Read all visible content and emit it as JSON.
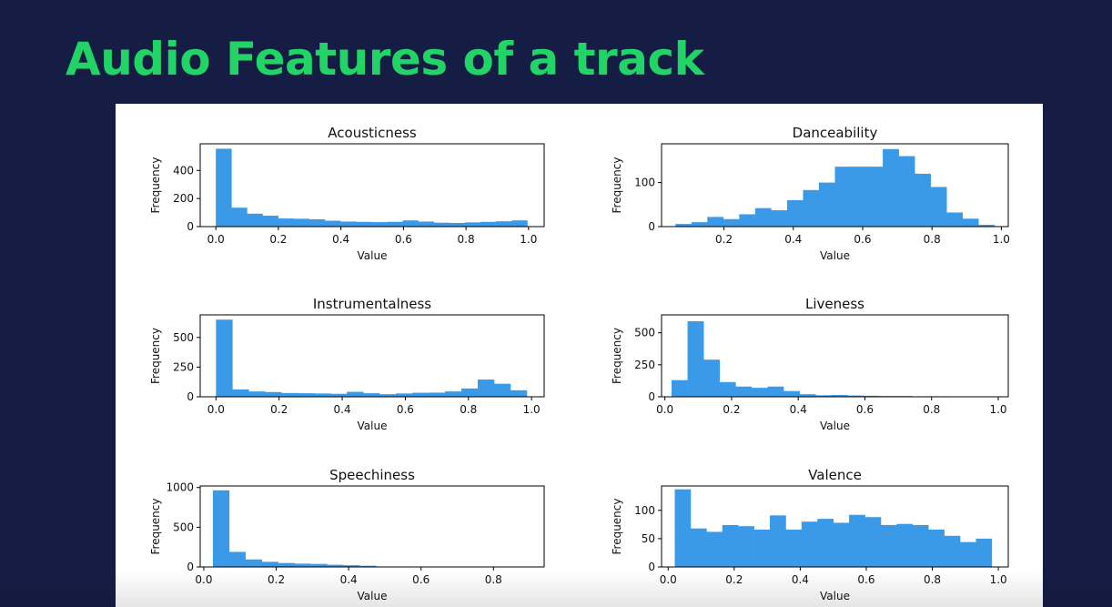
{
  "page": {
    "title": "Audio Features of a track",
    "colors": {
      "background": "#161d44",
      "title": "#22d466",
      "bar": "#3a9ae8",
      "panel": "#ffffff"
    }
  },
  "chart_data": [
    {
      "type": "bar",
      "title": "Acousticness",
      "xlabel": "Value",
      "ylabel": "Frequency",
      "xlim": [
        -0.05,
        1.05
      ],
      "ylim": [
        0,
        590
      ],
      "xticks": [
        0.0,
        0.2,
        0.4,
        0.6,
        0.8,
        1.0
      ],
      "xtick_labels": [
        "0.0",
        "0.2",
        "0.4",
        "0.6",
        "0.8",
        "1.0"
      ],
      "yticks": [
        0,
        200,
        400
      ],
      "ytick_labels": [
        "0",
        "200",
        "400"
      ],
      "bin_start": 0.0,
      "bin_end": 0.996,
      "values": [
        555,
        135,
        92,
        78,
        58,
        56,
        52,
        42,
        36,
        34,
        32,
        34,
        44,
        36,
        28,
        26,
        30,
        34,
        38,
        44
      ]
    },
    {
      "type": "bar",
      "title": "Danceability",
      "xlabel": "Value",
      "ylabel": "Frequency",
      "xlim": [
        0.02,
        1.02
      ],
      "ylim": [
        0,
        188
      ],
      "xticks": [
        0.2,
        0.4,
        0.6,
        0.8,
        1.0
      ],
      "xtick_labels": [
        "0.2",
        "0.4",
        "0.6",
        "0.8",
        "1.0"
      ],
      "yticks": [
        0,
        100
      ],
      "ytick_labels": [
        "0",
        "100"
      ],
      "bin_start": 0.06,
      "bin_end": 0.98,
      "values": [
        6,
        10,
        22,
        17,
        28,
        42,
        37,
        60,
        83,
        100,
        136,
        136,
        136,
        176,
        160,
        120,
        90,
        32,
        18,
        4
      ]
    },
    {
      "type": "bar",
      "title": "Instrumentalness",
      "xlabel": "Value",
      "ylabel": "Frequency",
      "xlim": [
        -0.05,
        1.04
      ],
      "ylim": [
        0,
        690
      ],
      "xticks": [
        0.0,
        0.2,
        0.4,
        0.6,
        0.8,
        1.0
      ],
      "xtick_labels": [
        "0.0",
        "0.2",
        "0.4",
        "0.6",
        "0.8",
        "1.0"
      ],
      "yticks": [
        0,
        250,
        500
      ],
      "ytick_labels": [
        "0",
        "250",
        "500"
      ],
      "bin_start": 0.0,
      "bin_end": 0.985,
      "values": [
        650,
        62,
        45,
        40,
        32,
        30,
        28,
        25,
        42,
        30,
        22,
        28,
        34,
        35,
        45,
        70,
        145,
        110,
        55
      ]
    },
    {
      "type": "bar",
      "title": "Liveness",
      "xlabel": "Value",
      "ylabel": "Frequency",
      "xlim": [
        -0.01,
        1.03
      ],
      "ylim": [
        0,
        640
      ],
      "xticks": [
        0.0,
        0.2,
        0.4,
        0.6,
        0.8,
        1.0
      ],
      "xtick_labels": [
        "0.0",
        "0.2",
        "0.4",
        "0.6",
        "0.8",
        "1.0"
      ],
      "yticks": [
        0,
        250,
        500
      ],
      "ytick_labels": [
        "0",
        "250",
        "500"
      ],
      "bin_start": 0.02,
      "bin_end": 0.98,
      "values": [
        130,
        590,
        290,
        115,
        80,
        70,
        80,
        45,
        20,
        12,
        14,
        10,
        8,
        6,
        6,
        4,
        4,
        3,
        3,
        2
      ]
    },
    {
      "type": "bar",
      "title": "Speechiness",
      "xlabel": "Value",
      "ylabel": "Frequency",
      "xlim": [
        -0.01,
        0.94
      ],
      "ylim": [
        0,
        1020
      ],
      "xticks": [
        0.0,
        0.2,
        0.4,
        0.6,
        0.8
      ],
      "xtick_labels": [
        "0.0",
        "0.2",
        "0.4",
        "0.6",
        "0.8"
      ],
      "yticks": [
        0,
        500,
        1000
      ],
      "ytick_labels": [
        "0",
        "500",
        "1000"
      ],
      "bin_start": 0.025,
      "bin_end": 0.925,
      "values": [
        965,
        190,
        95,
        65,
        50,
        42,
        38,
        28,
        22,
        15,
        6,
        3,
        2,
        1,
        1,
        1,
        1,
        1,
        1,
        1
      ]
    },
    {
      "type": "bar",
      "title": "Valence",
      "xlabel": "Value",
      "ylabel": "Frequency",
      "xlim": [
        -0.02,
        1.03
      ],
      "ylim": [
        0,
        143
      ],
      "xticks": [
        0.0,
        0.2,
        0.4,
        0.6,
        0.8,
        1.0
      ],
      "xtick_labels": [
        "0.0",
        "0.2",
        "0.4",
        "0.6",
        "0.8",
        "1.0"
      ],
      "yticks": [
        0,
        50,
        100
      ],
      "ytick_labels": [
        "0",
        "50",
        "100"
      ],
      "bin_start": 0.02,
      "bin_end": 0.98,
      "values": [
        137,
        68,
        62,
        74,
        72,
        66,
        91,
        66,
        80,
        85,
        78,
        92,
        88,
        74,
        76,
        74,
        66,
        55,
        44,
        50
      ]
    }
  ]
}
